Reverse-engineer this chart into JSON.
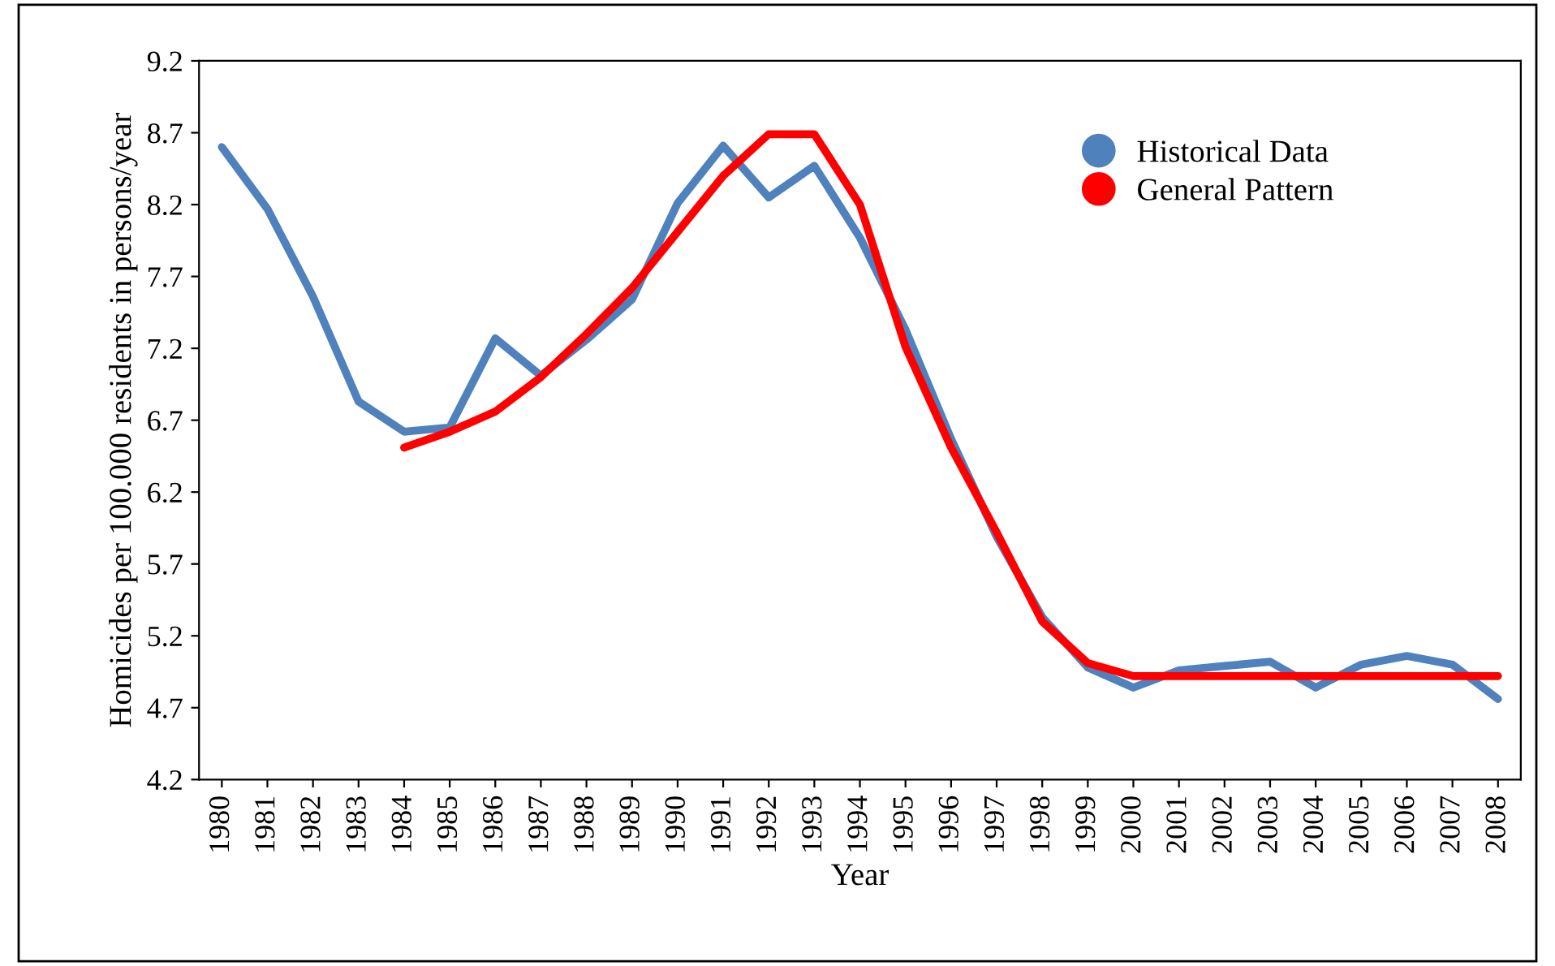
{
  "chart_data": {
    "type": "line",
    "xlabel": "Year",
    "ylabel": "Homicides per 100.000 residents in persons/year",
    "categories": [
      "1980",
      "1981",
      "1982",
      "1983",
      "1984",
      "1985",
      "1986",
      "1987",
      "1988",
      "1989",
      "1990",
      "1991",
      "1992",
      "1993",
      "1994",
      "1995",
      "1996",
      "1997",
      "1998",
      "1999",
      "2000",
      "2001",
      "2002",
      "2003",
      "2004",
      "2005",
      "2006",
      "2007",
      "2008"
    ],
    "series": [
      {
        "name": "Historical Data",
        "color": "#4f81bd",
        "values": [
          8.6,
          8.17,
          7.56,
          6.83,
          6.62,
          6.65,
          7.27,
          7.01,
          7.26,
          7.54,
          8.21,
          8.61,
          8.25,
          8.47,
          7.97,
          7.33,
          6.57,
          5.89,
          5.33,
          4.98,
          4.84,
          4.96,
          4.99,
          5.02,
          4.84,
          5.0,
          5.06,
          5.0,
          4.76
        ]
      },
      {
        "name": "General Pattern",
        "color": "#ff0000",
        "values": [
          null,
          null,
          null,
          null,
          6.51,
          6.62,
          6.76,
          7.0,
          7.3,
          7.62,
          8.01,
          8.4,
          8.69,
          8.69,
          8.2,
          7.21,
          6.51,
          5.92,
          5.3,
          5.01,
          4.92,
          4.92,
          4.92,
          4.92,
          4.92,
          4.92,
          4.92,
          4.92,
          4.92
        ]
      }
    ],
    "ylim": [
      4.2,
      9.2
    ],
    "yticks": [
      4.2,
      4.7,
      5.2,
      5.7,
      6.2,
      6.7,
      7.2,
      7.7,
      8.2,
      8.7,
      9.2
    ],
    "grid": false,
    "legend": "top right"
  }
}
